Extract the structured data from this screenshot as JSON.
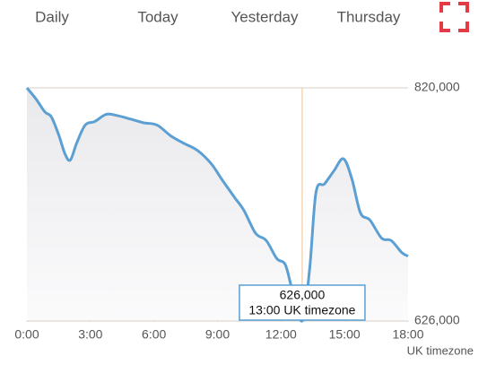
{
  "tabs": [
    "Daily",
    "Today",
    "Yesterday",
    "Thursday"
  ],
  "chart_data": {
    "type": "area-line",
    "x": [
      0,
      0.42,
      0.85,
      1.15,
      1.5,
      1.8,
      2.05,
      2.35,
      2.75,
      3.2,
      3.75,
      4.25,
      4.9,
      5.5,
      6.15,
      6.8,
      7.4,
      8.05,
      8.7,
      9.2,
      9.8,
      10.25,
      10.8,
      11.3,
      11.8,
      12.2,
      12.5,
      13.0,
      13.35,
      13.65,
      14.05,
      14.5,
      14.95,
      15.35,
      15.75,
      16.2,
      16.75,
      17.2,
      17.7,
      18
    ],
    "series": [
      {
        "color": "#5b9fd3",
        "values": [
          820000,
          811000,
          800000,
          796000,
          781000,
          765000,
          760000,
          774000,
          789000,
          792000,
          798000,
          797000,
          794000,
          791000,
          789000,
          780000,
          774000,
          768000,
          757000,
          744000,
          729000,
          718000,
          699000,
          693000,
          678000,
          673000,
          654000,
          626000,
          669000,
          733000,
          740000,
          751000,
          761000,
          744000,
          716000,
          710000,
          695000,
          693000,
          683000,
          680000
        ]
      }
    ],
    "xlim": [
      0,
      18
    ],
    "xticks": [
      {
        "value": 0,
        "label": "0:00"
      },
      {
        "value": 3,
        "label": "3:00"
      },
      {
        "value": 6,
        "label": "6:00"
      },
      {
        "value": 9,
        "label": "9:00"
      },
      {
        "value": 12,
        "label": "12:00"
      },
      {
        "value": 15,
        "label": "15:00"
      },
      {
        "value": 18,
        "label": "18:00"
      }
    ],
    "xlabel": "UK timezone",
    "ylim": [
      626000,
      820000
    ],
    "yticks": [
      {
        "value": 626000,
        "label": "626,000"
      },
      {
        "value": 820000,
        "label": "820,000"
      }
    ],
    "crosshair": {
      "x": 13,
      "value": 626000,
      "label": "626,000",
      "time_label": "13:00 UK timezone",
      "color": "#f2c08c"
    }
  }
}
